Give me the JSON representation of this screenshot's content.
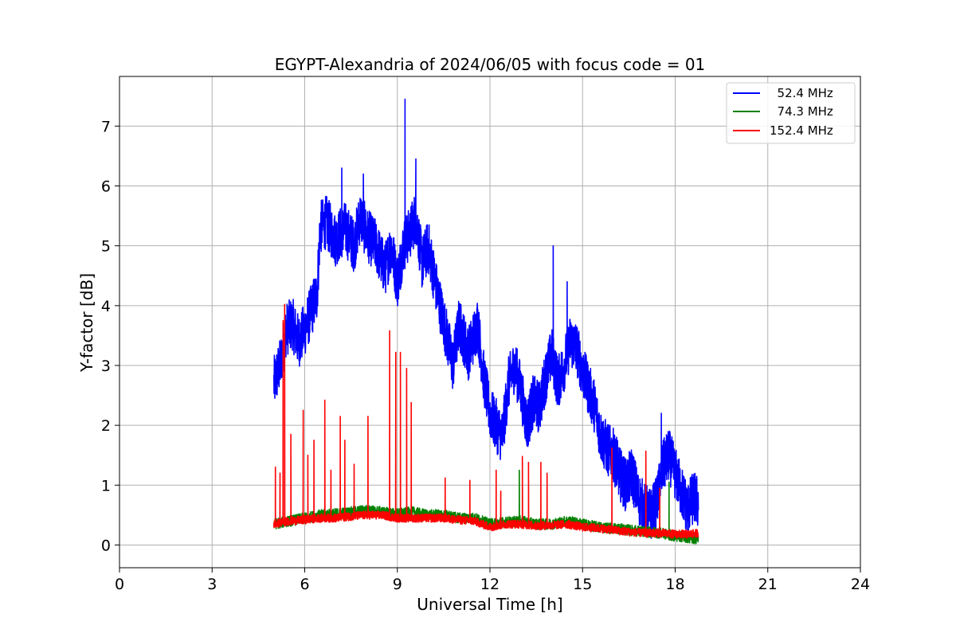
{
  "chart_data": {
    "type": "line",
    "title": "EGYPT-Alexandria of 2024/06/05 with focus code = 01",
    "xlabel": "Universal Time [h]",
    "ylabel": "Y-factor [dB]",
    "xlim": [
      0,
      24
    ],
    "ylim": [
      -0.38,
      7.83
    ],
    "xticks": [
      0,
      3,
      6,
      9,
      12,
      15,
      18,
      21,
      24
    ],
    "yticks": [
      0,
      1,
      2,
      3,
      4,
      5,
      6,
      7
    ],
    "grid": true,
    "legend_position": "top-right",
    "series": [
      {
        "name": "  52.4 MHz",
        "color": "#0000ff",
        "x": [
          5.0,
          5.2,
          5.4,
          5.6,
          5.8,
          6.0,
          6.2,
          6.4,
          6.5,
          6.7,
          7.0,
          7.3,
          7.6,
          7.8,
          8.0,
          8.3,
          8.6,
          8.8,
          9.0,
          9.2,
          9.4,
          9.6,
          9.8,
          10.0,
          10.3,
          10.6,
          10.8,
          11.0,
          11.3,
          11.6,
          11.8,
          12.0,
          12.2,
          12.4,
          12.6,
          12.8,
          13.0,
          13.2,
          13.4,
          13.6,
          13.8,
          14.0,
          14.2,
          14.4,
          14.6,
          14.8,
          15.0,
          15.2,
          15.4,
          15.6,
          15.8,
          16.0,
          16.2,
          16.4,
          16.6,
          16.8,
          17.0,
          17.2,
          17.4,
          17.6,
          17.8,
          18.0,
          18.2,
          18.4,
          18.6,
          18.75
        ],
        "y": [
          2.7,
          3.0,
          3.6,
          3.7,
          3.4,
          3.6,
          3.9,
          4.2,
          5.3,
          5.4,
          5.1,
          5.3,
          5.0,
          5.5,
          5.2,
          5.0,
          4.6,
          5.0,
          4.4,
          5.0,
          5.2,
          5.5,
          4.7,
          5.0,
          4.2,
          3.5,
          3.0,
          3.7,
          3.2,
          3.7,
          2.8,
          2.2,
          2.0,
          1.8,
          2.7,
          3.0,
          2.6,
          2.0,
          2.4,
          2.3,
          2.8,
          3.2,
          2.7,
          3.0,
          3.4,
          3.3,
          2.9,
          2.6,
          2.3,
          1.8,
          1.6,
          1.5,
          1.2,
          1.0,
          1.2,
          0.8,
          0.6,
          0.5,
          0.7,
          1.3,
          1.5,
          1.2,
          0.9,
          0.6,
          0.8,
          0.7
        ],
        "spikes": [
          [
            7.2,
            6.3
          ],
          [
            7.9,
            6.2
          ],
          [
            9.25,
            7.45
          ],
          [
            9.6,
            6.45
          ],
          [
            14.05,
            5.0
          ],
          [
            14.5,
            4.4
          ],
          [
            16.1,
            1.8
          ],
          [
            17.55,
            2.2
          ]
        ]
      },
      {
        "name": "  74.3 MHz",
        "color": "#008000",
        "x": [
          5.0,
          5.5,
          6.0,
          6.5,
          7.0,
          7.5,
          8.0,
          8.5,
          9.0,
          9.5,
          10.0,
          10.5,
          11.0,
          11.5,
          12.0,
          12.5,
          13.0,
          13.5,
          14.0,
          14.5,
          15.0,
          15.5,
          16.0,
          16.5,
          17.0,
          17.5,
          18.0,
          18.5,
          18.75
        ],
        "y": [
          0.35,
          0.4,
          0.45,
          0.5,
          0.52,
          0.55,
          0.58,
          0.55,
          0.52,
          0.55,
          0.5,
          0.5,
          0.45,
          0.45,
          0.35,
          0.38,
          0.4,
          0.35,
          0.35,
          0.4,
          0.35,
          0.3,
          0.28,
          0.25,
          0.22,
          0.2,
          0.15,
          0.12,
          0.1
        ],
        "spikes": [
          [
            12.95,
            1.25
          ],
          [
            17.8,
            1.05
          ]
        ]
      },
      {
        "name": "152.4 MHz",
        "color": "#ff0000",
        "x": [
          5.0,
          5.5,
          6.0,
          6.5,
          7.0,
          7.5,
          8.0,
          8.5,
          9.0,
          9.5,
          10.0,
          10.5,
          11.0,
          11.5,
          12.0,
          12.5,
          13.0,
          13.5,
          14.0,
          14.5,
          15.0,
          15.5,
          16.0,
          16.5,
          17.0,
          17.5,
          18.0,
          18.5,
          18.75
        ],
        "y": [
          0.35,
          0.4,
          0.42,
          0.45,
          0.45,
          0.48,
          0.5,
          0.5,
          0.45,
          0.45,
          0.45,
          0.45,
          0.42,
          0.4,
          0.3,
          0.35,
          0.35,
          0.32,
          0.33,
          0.35,
          0.3,
          0.28,
          0.25,
          0.22,
          0.2,
          0.2,
          0.18,
          0.18,
          0.2
        ],
        "spikes": [
          [
            5.05,
            1.3
          ],
          [
            5.2,
            1.2
          ],
          [
            5.3,
            3.75
          ],
          [
            5.35,
            4.02
          ],
          [
            5.55,
            1.85
          ],
          [
            5.95,
            2.25
          ],
          [
            6.1,
            1.5
          ],
          [
            6.3,
            1.75
          ],
          [
            6.65,
            2.42
          ],
          [
            6.85,
            1.25
          ],
          [
            7.15,
            2.15
          ],
          [
            7.3,
            1.75
          ],
          [
            7.6,
            1.35
          ],
          [
            8.05,
            2.15
          ],
          [
            8.75,
            3.58
          ],
          [
            8.95,
            3.22
          ],
          [
            9.1,
            3.22
          ],
          [
            9.3,
            2.95
          ],
          [
            9.45,
            2.38
          ],
          [
            10.55,
            1.12
          ],
          [
            11.35,
            1.08
          ],
          [
            12.2,
            1.25
          ],
          [
            12.35,
            0.9
          ],
          [
            13.05,
            1.48
          ],
          [
            13.25,
            1.38
          ],
          [
            13.65,
            1.38
          ],
          [
            13.85,
            1.2
          ],
          [
            15.95,
            1.62
          ],
          [
            17.05,
            1.57
          ],
          [
            17.5,
            0.95
          ]
        ]
      }
    ]
  }
}
